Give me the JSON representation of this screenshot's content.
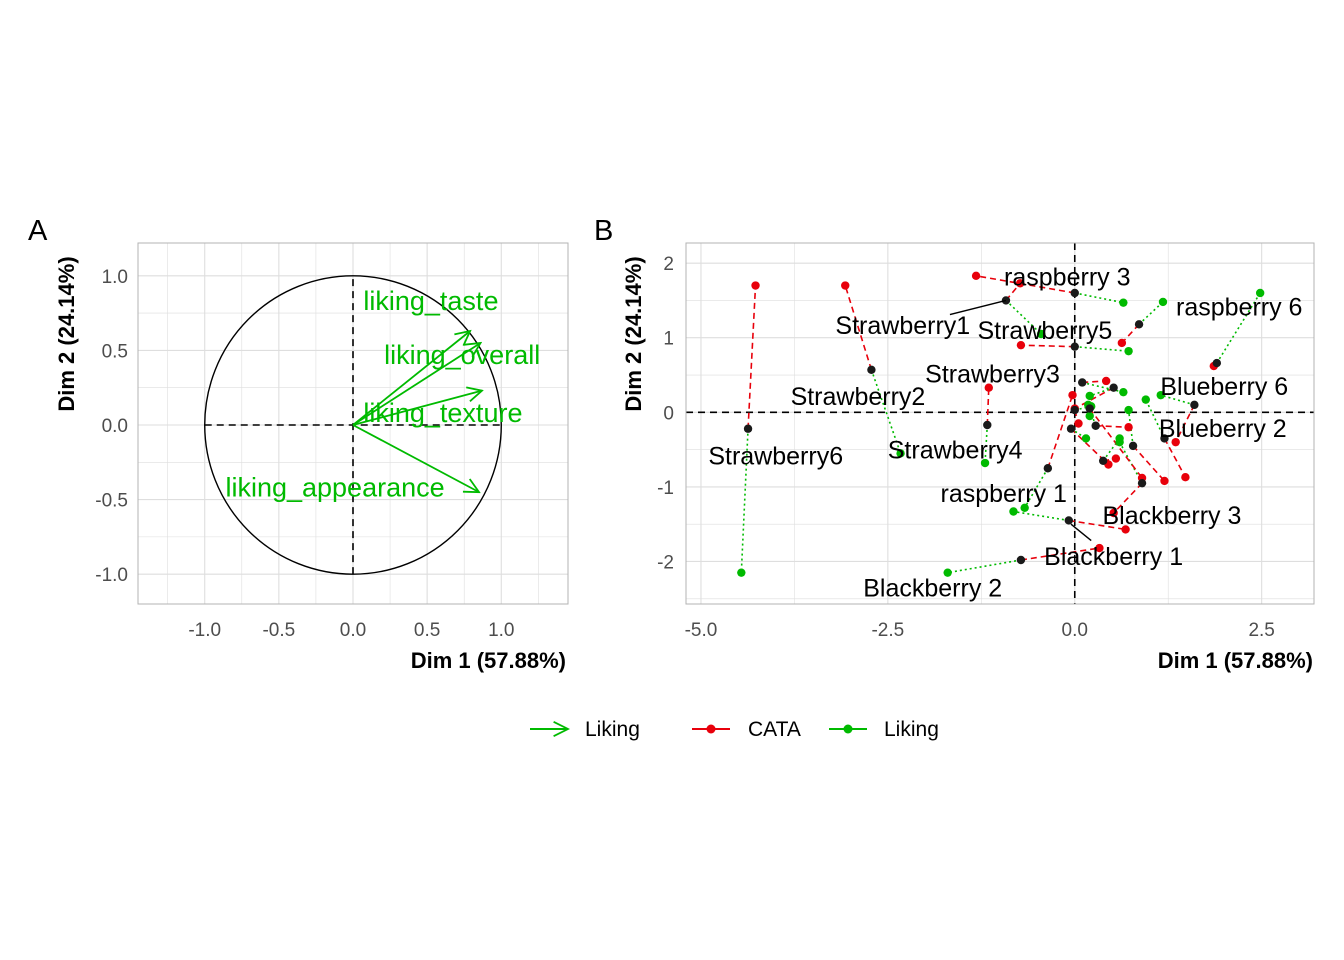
{
  "colors": {
    "liking": "#00BA00",
    "cata": "#E8000B",
    "product": "#1a1a1a",
    "grid": "#dedede",
    "panel_border": "#b3b3b3"
  },
  "chart_data": [
    {
      "type": "scatter",
      "panel_tag": "A",
      "xlabel": "Dim 1 (57.88%)",
      "ylabel": "Dim 2 (24.14%)",
      "xlim": [
        -1.45,
        1.45
      ],
      "ylim": [
        -1.2,
        1.22
      ],
      "xticks": [
        -1.0,
        -0.5,
        0.0,
        0.5,
        1.0
      ],
      "yticks": [
        -1.0,
        -0.5,
        0.0,
        0.5,
        1.0
      ],
      "xtick_labels": [
        "-1.0",
        "-0.5",
        "0.0",
        "0.5",
        "1.0"
      ],
      "ytick_labels": [
        "-1.0",
        "-0.5",
        "0.0",
        "0.5",
        "1.0"
      ],
      "unit_circle_radius": 1.0,
      "reference_lines": "dashed at x=0 and y=0",
      "grid": true,
      "series": [
        {
          "name": "Liking",
          "kind": "arrows",
          "points": [
            {
              "label": "liking_taste",
              "x": 0.79,
              "y": 0.63
            },
            {
              "label": "liking_overall",
              "x": 0.86,
              "y": 0.55
            },
            {
              "label": "liking_texture",
              "x": 0.87,
              "y": 0.23
            },
            {
              "label": "liking_appearance",
              "x": 0.85,
              "y": -0.45
            }
          ]
        }
      ]
    },
    {
      "type": "scatter",
      "panel_tag": "B",
      "xlabel": "Dim 1 (57.88%)",
      "ylabel": "Dim 2 (24.14%)",
      "xlim": [
        -5.2,
        3.2
      ],
      "ylim": [
        -2.57,
        2.27
      ],
      "xticks": [
        -5.0,
        -2.5,
        0.0,
        2.5
      ],
      "yticks": [
        -2,
        -1,
        0,
        1,
        2
      ],
      "xtick_labels": [
        "-5.0",
        "-2.5",
        "0.0",
        "2.5"
      ],
      "ytick_labels": [
        "-2",
        "-1",
        "0",
        "1",
        "2"
      ],
      "reference_lines": "dashed at x=0 and y=0",
      "grid": true,
      "products": [
        {
          "label": "raspberry 3",
          "x": 0.0,
          "y": 1.6,
          "cata": [
            -1.32,
            1.83
          ],
          "liking": [
            0.65,
            1.47
          ]
        },
        {
          "label": "raspberry 6",
          "x": 1.9,
          "y": 0.66,
          "cata": [
            1.86,
            0.62
          ],
          "liking": [
            2.48,
            1.6
          ]
        },
        {
          "label": "Strawberry1",
          "x": -0.92,
          "y": 1.5,
          "cata": [
            -0.73,
            1.73
          ],
          "liking": [
            -0.45,
            1.05
          ]
        },
        {
          "label": "Strawberry5",
          "x": 0.86,
          "y": 1.18,
          "cata": [
            0.63,
            0.93
          ],
          "liking": [
            1.18,
            1.48
          ]
        },
        {
          "label": "Strawberry3",
          "x": 0.0,
          "y": 0.88,
          "cata": [
            -0.72,
            0.9
          ],
          "liking": [
            0.72,
            0.82
          ]
        },
        {
          "label": "Strawberry2",
          "x": -2.72,
          "y": 0.57,
          "cata": [
            -3.07,
            1.7
          ],
          "liking": [
            -2.33,
            -0.55
          ]
        },
        {
          "label": "Strawberry6",
          "x": -4.37,
          "y": -0.22,
          "cata": [
            -4.27,
            1.7
          ],
          "liking": [
            -4.46,
            -2.15
          ]
        },
        {
          "label": "Strawberry4",
          "x": -1.17,
          "y": -0.17,
          "cata": [
            -1.15,
            0.33
          ],
          "liking": [
            -1.2,
            -0.68
          ]
        },
        {
          "label": "Blueberry 6",
          "x": 1.6,
          "y": 0.1,
          "cata": [
            1.35,
            -0.4
          ],
          "liking": [
            1.15,
            0.23
          ]
        },
        {
          "label": "Blueberry 2",
          "x": 1.2,
          "y": -0.35,
          "cata": [
            1.48,
            -0.87
          ],
          "liking": [
            0.95,
            0.17
          ]
        },
        {
          "label": "raspberry 1",
          "x": -0.36,
          "y": -0.75,
          "cata": [
            -0.03,
            0.23
          ],
          "liking": [
            -0.67,
            -1.28
          ]
        },
        {
          "label": "Blackberry 3",
          "x": 0.9,
          "y": -0.95,
          "cata": [
            0.52,
            -1.35
          ],
          "liking": [
            0.6,
            -0.4
          ]
        },
        {
          "label": "Blackberry 1",
          "x": -0.08,
          "y": -1.45,
          "cata": [
            0.68,
            -1.57
          ],
          "liking": [
            -0.82,
            -1.33
          ]
        },
        {
          "label": "Blackberry 2",
          "x": -0.72,
          "y": -1.98,
          "cata": [
            0.33,
            -1.82
          ],
          "liking": [
            -1.7,
            -2.15
          ]
        },
        {
          "label": "",
          "x": 0.1,
          "y": 0.4,
          "cata": [
            0.42,
            0.42
          ],
          "liking": [
            0.65,
            0.27
          ]
        },
        {
          "label": "",
          "x": 0.52,
          "y": 0.33,
          "cata": [
            0.0,
            0.05
          ],
          "liking": [
            0.2,
            0.22
          ]
        },
        {
          "label": "",
          "x": 0.0,
          "y": 0.03,
          "cata": [
            0.05,
            -0.15
          ],
          "liking": [
            0.22,
            0.08
          ]
        },
        {
          "label": "",
          "x": 0.78,
          "y": -0.45,
          "cata": [
            1.2,
            -0.92
          ],
          "liking": [
            0.72,
            0.03
          ]
        },
        {
          "label": "",
          "x": 0.38,
          "y": -0.65,
          "cata": [
            0.55,
            -0.62
          ],
          "liking": [
            0.6,
            -0.35
          ]
        },
        {
          "label": "",
          "x": 0.2,
          "y": 0.05,
          "cata": [
            0.9,
            -0.88
          ],
          "liking": [
            0.2,
            -0.05
          ]
        },
        {
          "label": "",
          "x": -0.05,
          "y": -0.22,
          "cata": [
            0.45,
            -0.7
          ],
          "liking": [
            0.15,
            -0.35
          ]
        },
        {
          "label": "",
          "x": 0.28,
          "y": -0.18,
          "cata": [
            0.72,
            -0.2
          ],
          "liking": [
            0.18,
            0.1
          ]
        }
      ]
    }
  ],
  "legend": {
    "items": [
      {
        "label": "Liking",
        "kind": "arrow",
        "color": "#00BA00"
      },
      {
        "label": "CATA",
        "kind": "point-line",
        "color": "#E8000B"
      },
      {
        "label": "Liking",
        "kind": "point-line",
        "color": "#00BA00"
      }
    ]
  }
}
